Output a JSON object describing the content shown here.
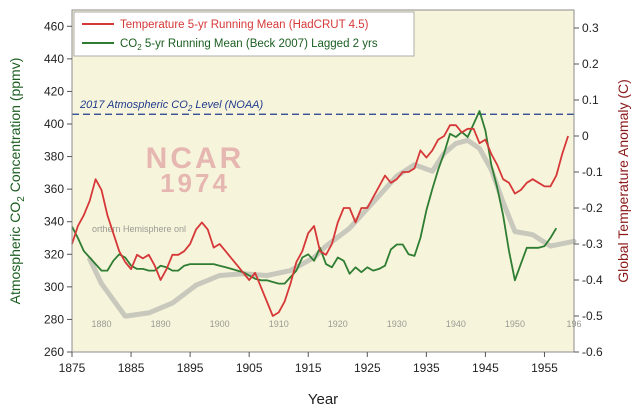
{
  "chart_data": {
    "type": "line",
    "title": "",
    "xlabel": "Year",
    "ylabel_left": "Atmospheric CO2 Concentration (ppmv)",
    "ylabel_left_parts": [
      "Atmospheric CO",
      "2",
      " Concentration (ppmv)"
    ],
    "ylabel_right": "Global Temperature Anomaly (C)",
    "xlim": [
      1875,
      1960
    ],
    "ylim_left": [
      260,
      470
    ],
    "ylim_right": [
      -0.6,
      0.35
    ],
    "x_ticks": [
      1875,
      1885,
      1895,
      1905,
      1915,
      1925,
      1935,
      1945,
      1955
    ],
    "left_ticks": [
      260,
      280,
      300,
      320,
      340,
      360,
      380,
      400,
      420,
      440,
      460
    ],
    "right_ticks": [
      -0.6,
      -0.5,
      -0.4,
      -0.3,
      -0.2,
      -0.1,
      0,
      0.1,
      0.2,
      0.3
    ],
    "right_tick_labels": [
      "-0.6",
      "-0.5",
      "-0.4",
      "-0.3",
      "-0.2",
      "-0.1",
      "0",
      "0.1",
      "0.2",
      "0.3"
    ],
    "colors": {
      "background": "#f7f4dc",
      "temperature": "#d63838",
      "co2": "#2e7d32",
      "reference": "#1f3b8c",
      "axis_right": "#8b1a1a",
      "axis_left": "#1b5e20",
      "ncar_text": "#e0a3a3",
      "ncar_curve": "#b9b9b2"
    },
    "legend": {
      "placement": "top-left",
      "entries": [
        {
          "series": "temperature",
          "label": "Temperature 5-yr Running Mean (HadCRUT 4.5)"
        },
        {
          "series": "co2",
          "label_parts": [
            "CO",
            "2",
            " 5-yr Running Mean (Beck 2007) Lagged 2 yrs"
          ],
          "label": "CO2 5-yr Running Mean (Beck 2007) Lagged 2 yrs"
        }
      ]
    },
    "reference_line": {
      "value": 406,
      "axis": "left",
      "label": "2017 Atmospheric CO2 Level (NOAA)",
      "label_parts": [
        "2017 Atmospheric CO",
        "2",
        " Level (NOAA)"
      ]
    },
    "background_image": {
      "watermark_lines": [
        "NCAR",
        "1974"
      ],
      "snippet_text": "orthern Hemisphere onl",
      "inset_ticks": [
        "1880",
        "1890",
        "1900",
        "1910",
        "1920",
        "1930",
        "1940",
        "1950",
        "196"
      ],
      "curve_x": [
        1878,
        1880,
        1884,
        1888,
        1892,
        1896,
        1900,
        1904,
        1908,
        1912,
        1916,
        1918,
        1922,
        1926,
        1930,
        1933,
        1936,
        1938,
        1940,
        1942,
        1944,
        1946,
        1948,
        1950,
        1953,
        1956,
        1960
      ],
      "curve_y": [
        317,
        302,
        282,
        284,
        290,
        301,
        307,
        308,
        307,
        310,
        318,
        325,
        336,
        352,
        368,
        375,
        371,
        382,
        388,
        390,
        385,
        372,
        352,
        334,
        332,
        325,
        328
      ]
    },
    "series": [
      {
        "name": "Temperature 5-yr Running Mean (HadCRUT 4.5)",
        "key": "temperature",
        "axis": "right",
        "x": [
          1875,
          1876,
          1877,
          1878,
          1879,
          1880,
          1881,
          1882,
          1883,
          1884,
          1885,
          1886,
          1887,
          1888,
          1889,
          1890,
          1891,
          1892,
          1893,
          1894,
          1895,
          1896,
          1897,
          1898,
          1899,
          1900,
          1901,
          1902,
          1903,
          1904,
          1905,
          1906,
          1907,
          1908,
          1909,
          1910,
          1911,
          1912,
          1913,
          1914,
          1915,
          1916,
          1917,
          1918,
          1919,
          1920,
          1921,
          1922,
          1923,
          1924,
          1925,
          1926,
          1927,
          1928,
          1929,
          1930,
          1931,
          1932,
          1933,
          1934,
          1935,
          1936,
          1937,
          1938,
          1939,
          1940,
          1941,
          1942,
          1943,
          1944,
          1945,
          1946,
          1947,
          1948,
          1949,
          1950,
          1951,
          1952,
          1953,
          1954,
          1955,
          1956,
          1957,
          1958,
          1959
        ],
        "values": [
          -0.3,
          -0.25,
          -0.22,
          -0.18,
          -0.12,
          -0.15,
          -0.22,
          -0.27,
          -0.32,
          -0.35,
          -0.37,
          -0.33,
          -0.34,
          -0.33,
          -0.36,
          -0.4,
          -0.37,
          -0.33,
          -0.33,
          -0.32,
          -0.3,
          -0.26,
          -0.24,
          -0.26,
          -0.31,
          -0.3,
          -0.32,
          -0.34,
          -0.36,
          -0.38,
          -0.4,
          -0.38,
          -0.42,
          -0.46,
          -0.5,
          -0.49,
          -0.46,
          -0.41,
          -0.35,
          -0.32,
          -0.27,
          -0.25,
          -0.32,
          -0.33,
          -0.3,
          -0.24,
          -0.2,
          -0.2,
          -0.24,
          -0.2,
          -0.2,
          -0.17,
          -0.14,
          -0.11,
          -0.13,
          -0.12,
          -0.1,
          -0.1,
          -0.09,
          -0.04,
          -0.06,
          -0.04,
          -0.01,
          0.0,
          0.03,
          0.03,
          0.01,
          0.02,
          0.02,
          -0.02,
          -0.01,
          -0.05,
          -0.08,
          -0.12,
          -0.13,
          -0.16,
          -0.15,
          -0.13,
          -0.12,
          -0.13,
          -0.14,
          -0.14,
          -0.11,
          -0.05,
          0.0
        ]
      },
      {
        "name": "CO2 5-yr Running Mean (Beck 2007) Lagged 2 yrs",
        "key": "co2",
        "axis": "left",
        "x": [
          1875,
          1876,
          1877,
          1878,
          1879,
          1880,
          1881,
          1882,
          1883,
          1884,
          1885,
          1886,
          1887,
          1888,
          1889,
          1890,
          1891,
          1892,
          1893,
          1894,
          1895,
          1896,
          1897,
          1898,
          1899,
          1900,
          1901,
          1902,
          1903,
          1904,
          1905,
          1906,
          1907,
          1908,
          1909,
          1910,
          1911,
          1912,
          1913,
          1914,
          1915,
          1916,
          1917,
          1918,
          1919,
          1920,
          1921,
          1922,
          1923,
          1924,
          1925,
          1926,
          1927,
          1928,
          1929,
          1930,
          1931,
          1932,
          1933,
          1934,
          1935,
          1936,
          1937,
          1938,
          1939,
          1940,
          1941,
          1942,
          1943,
          1944,
          1945,
          1946,
          1947,
          1948,
          1949,
          1950,
          1951,
          1952,
          1953,
          1954,
          1955,
          1956,
          1957
        ],
        "values": [
          337,
          330,
          322,
          318,
          314,
          310,
          310,
          316,
          320,
          318,
          313,
          311,
          311,
          310,
          310,
          313,
          312,
          310,
          310,
          313,
          314,
          314,
          314,
          314,
          314,
          313,
          312,
          311,
          310,
          309,
          307,
          305,
          304,
          304,
          303,
          302,
          302,
          306,
          310,
          318,
          320,
          316,
          324,
          314,
          312,
          318,
          316,
          308,
          312,
          309,
          312,
          310,
          311,
          313,
          323,
          326,
          326,
          320,
          319,
          330,
          347,
          360,
          372,
          382,
          394,
          392,
          395,
          392,
          400,
          408,
          396,
          375,
          361,
          344,
          322,
          304,
          314,
          324,
          324,
          324,
          325,
          330,
          336
        ]
      }
    ]
  }
}
